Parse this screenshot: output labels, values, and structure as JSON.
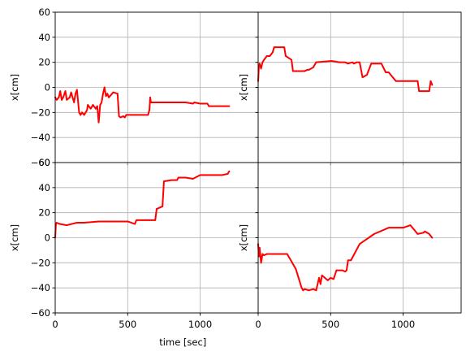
{
  "chart_data": [
    {
      "type": "line",
      "xlabel": "",
      "ylabel": "x[cm]",
      "xlim": [
        0,
        1400
      ],
      "ylim": [
        -60,
        60
      ],
      "xticks": [
        0,
        500,
        1000
      ],
      "yticks": [
        -60,
        -40,
        -20,
        0,
        20,
        40,
        60
      ],
      "grid": true,
      "series_color": "#ff0000",
      "x": [
        0,
        10,
        25,
        35,
        45,
        55,
        70,
        80,
        100,
        110,
        130,
        140,
        150,
        165,
        175,
        185,
        200,
        220,
        225,
        245,
        260,
        280,
        290,
        300,
        310,
        320,
        330,
        340,
        350,
        360,
        370,
        400,
        430,
        440,
        450,
        470,
        480,
        490,
        520,
        560,
        640,
        650,
        655,
        660,
        700,
        800,
        900,
        950,
        960,
        1000,
        1050,
        1060,
        1200
      ],
      "y": [
        -8,
        -10,
        -8,
        -3,
        -10,
        -8,
        -3,
        -10,
        -8,
        -4,
        -12,
        -5,
        -2,
        -20,
        -22,
        -20,
        -22,
        -18,
        -14,
        -17,
        -14,
        -17,
        -15,
        -28,
        -14,
        -12,
        -5,
        0,
        -7,
        -5,
        -8,
        -4,
        -5,
        -23,
        -24,
        -23,
        -24,
        -22,
        -22,
        -22,
        -22,
        -18,
        -8,
        -12,
        -12,
        -12,
        -12,
        -13,
        -12,
        -13,
        -13,
        -15,
        -15
      ]
    },
    {
      "type": "line",
      "xlabel": "",
      "ylabel": "x[cm]",
      "xlim": [
        0,
        1400
      ],
      "ylim": [
        -60,
        60
      ],
      "xticks": [
        0,
        500,
        1000
      ],
      "yticks": [
        -60,
        -40,
        -20,
        0,
        20,
        40,
        60
      ],
      "grid": true,
      "series_color": "#ff0000",
      "x": [
        0,
        5,
        10,
        20,
        30,
        40,
        60,
        80,
        100,
        110,
        180,
        190,
        230,
        240,
        320,
        340,
        350,
        380,
        400,
        500,
        510,
        560,
        600,
        620,
        650,
        660,
        680,
        700,
        720,
        750,
        780,
        800,
        850,
        880,
        900,
        950,
        980,
        1000,
        1100,
        1110,
        1180,
        1190,
        1200
      ],
      "y": [
        5,
        17,
        19,
        15,
        20,
        22,
        25,
        25,
        28,
        32,
        32,
        25,
        22,
        13,
        13,
        14,
        14,
        16,
        20,
        21,
        21,
        20,
        20,
        19,
        20,
        19,
        20,
        20,
        8,
        10,
        19,
        19,
        19,
        12,
        12,
        5,
        5,
        5,
        5,
        -3,
        -3,
        5,
        2
      ]
    },
    {
      "type": "line",
      "xlabel": "time [sec]",
      "ylabel": "x[cm]",
      "xlim": [
        0,
        1400
      ],
      "ylim": [
        -60,
        60
      ],
      "xticks": [
        0,
        500,
        1000
      ],
      "yticks": [
        -60,
        -40,
        -20,
        0,
        20,
        40,
        60
      ],
      "grid": true,
      "series_color": "#ff0000",
      "x": [
        0,
        5,
        10,
        30,
        80,
        150,
        200,
        300,
        400,
        450,
        500,
        550,
        560,
        600,
        620,
        650,
        690,
        700,
        740,
        750,
        800,
        840,
        850,
        900,
        950,
        1000,
        1050,
        1100,
        1150,
        1190,
        1200
      ],
      "y": [
        0,
        11,
        12,
        11,
        10,
        12,
        12,
        13,
        13,
        13,
        13,
        11,
        14,
        14,
        14,
        14,
        14,
        23,
        25,
        45,
        46,
        46,
        48,
        48,
        47,
        50,
        50,
        50,
        50,
        51,
        53
      ]
    },
    {
      "type": "line",
      "xlabel": "time [sec]",
      "ylabel": "x[cm]",
      "xlim": [
        0,
        1400
      ],
      "ylim": [
        -60,
        60
      ],
      "xticks": [
        0,
        500,
        1000
      ],
      "yticks": [
        -60,
        -40,
        -20,
        0,
        20,
        40,
        60
      ],
      "grid": true,
      "series_color": "#ff0000",
      "x": [
        0,
        5,
        10,
        20,
        30,
        40,
        60,
        100,
        160,
        200,
        260,
        300,
        310,
        320,
        350,
        380,
        400,
        420,
        430,
        440,
        460,
        480,
        500,
        520,
        540,
        580,
        600,
        610,
        620,
        640,
        700,
        800,
        900,
        950,
        960,
        980,
        1000,
        1050,
        1100,
        1140,
        1150,
        1180,
        1200
      ],
      "y": [
        -5,
        -15,
        -8,
        -20,
        -13,
        -14,
        -13,
        -13,
        -13,
        -13,
        -25,
        -40,
        -42,
        -41,
        -42,
        -41,
        -42,
        -32,
        -37,
        -30,
        -32,
        -34,
        -32,
        -33,
        -26,
        -26,
        -27,
        -26,
        -18,
        -18,
        -5,
        3,
        8,
        8,
        8,
        8,
        8,
        10,
        3,
        4,
        5,
        3,
        0
      ]
    }
  ]
}
